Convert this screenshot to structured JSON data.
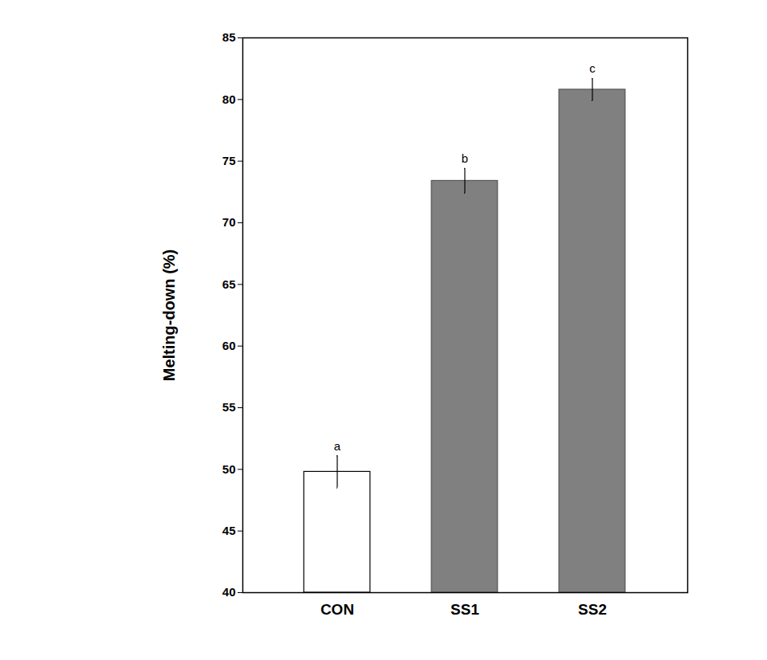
{
  "chart_data": {
    "type": "bar",
    "categories": [
      "CON",
      "SS1",
      "SS2"
    ],
    "values": [
      49.8,
      73.4,
      80.8
    ],
    "errors": [
      1.3,
      1.0,
      0.9
    ],
    "annotations": [
      "a",
      "b",
      "c"
    ],
    "colors": [
      "#ffffff",
      "#808080",
      "#808080"
    ],
    "ylabel": "Melting-down (%)",
    "ylim": [
      40,
      85
    ],
    "yticks": [
      40,
      45,
      50,
      55,
      60,
      65,
      70,
      75,
      80,
      85
    ],
    "grid": false
  }
}
